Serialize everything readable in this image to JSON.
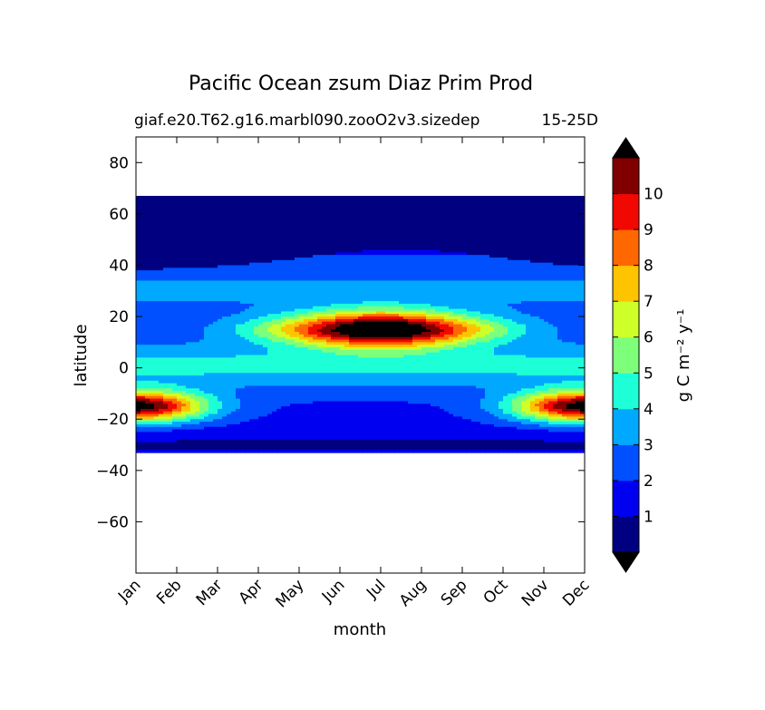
{
  "chart_data": {
    "type": "heatmap",
    "title": "Pacific Ocean zsum Diaz Prim Prod",
    "subtitle_left": "giaf.e20.T62.g16.marbl090.zooO2v3.sizedep",
    "subtitle_right": "15-25D",
    "xlabel": "month",
    "ylabel": "latitude",
    "x_ticks": [
      "Jan",
      "Feb",
      "Mar",
      "Apr",
      "May",
      "Jun",
      "Jul",
      "Aug",
      "Sep",
      "Oct",
      "Nov",
      "Dec"
    ],
    "y_ticks": [
      80,
      60,
      40,
      20,
      0,
      -20,
      -40,
      -60
    ],
    "ylim": [
      -80,
      90
    ],
    "colorbar": {
      "label": "g C m⁻² y⁻¹",
      "tick_labels": [
        "1",
        "2",
        "3",
        "4",
        "5",
        "6",
        "7",
        "8",
        "9",
        "10"
      ],
      "levels": [
        0,
        1,
        2,
        3,
        4,
        5,
        6,
        7,
        8,
        9,
        10,
        11
      ],
      "colors": [
        "#000080",
        "#0000f0",
        "#0050ff",
        "#00a8ff",
        "#1dffd6",
        "#7dff7a",
        "#ceff29",
        "#ffc400",
        "#ff6800",
        "#f10800",
        "#800000"
      ],
      "extend_over_color": "#000000",
      "extend_under_color": "#000000"
    },
    "data_extent_lat": [
      -33,
      67
    ],
    "background_color": "#000000"
  }
}
